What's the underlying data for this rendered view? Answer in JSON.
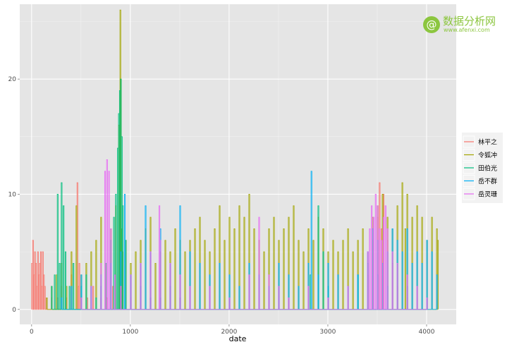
{
  "chart_data": {
    "type": "line",
    "xlabel": "date",
    "ylabel": "",
    "xlim": [
      -120,
      4300
    ],
    "ylim": [
      -1.3,
      26.5
    ],
    "x_ticks": [
      0,
      1000,
      2000,
      3000,
      4000
    ],
    "x_tick_labels": [
      "0",
      "1000",
      "2000",
      "3000",
      "4000"
    ],
    "y_ticks": [
      0,
      10,
      20
    ],
    "y_tick_labels": [
      "0",
      "10",
      "20"
    ],
    "grid": true,
    "legend_position": "right",
    "legend_title": "",
    "colors": [
      "#F8766D",
      "#A3A500",
      "#00BF7D",
      "#00B0F6",
      "#E76BF3"
    ],
    "series": [
      {
        "name": "林平之",
        "x": [
          0,
          10,
          20,
          30,
          40,
          50,
          60,
          70,
          80,
          90,
          100,
          110,
          120,
          130,
          150,
          200,
          260,
          300,
          350,
          400,
          460,
          470,
          480,
          500,
          560,
          620,
          700,
          760,
          820,
          900,
          1000,
          1100,
          1200,
          1300,
          1400,
          1500,
          1700,
          2000,
          2300,
          2600,
          3000,
          3400,
          3450,
          3500,
          3520,
          3540,
          3560,
          3600,
          3650,
          3700,
          3800,
          4000
        ],
        "y": [
          4,
          6,
          3,
          5,
          4,
          2,
          5,
          3,
          4,
          5,
          2,
          5,
          3,
          2,
          1,
          1,
          1,
          2,
          1,
          3,
          11,
          2,
          4,
          1,
          1,
          2,
          1,
          1,
          2,
          1,
          1,
          0,
          1,
          1,
          0,
          1,
          0,
          1,
          0,
          1,
          0,
          3,
          6,
          8,
          11,
          7,
          10,
          6,
          4,
          2,
          1,
          0
        ]
      },
      {
        "name": "令狐冲",
        "x": [
          150,
          200,
          250,
          300,
          350,
          400,
          450,
          500,
          550,
          600,
          650,
          700,
          750,
          800,
          850,
          880,
          895,
          900,
          905,
          915,
          950,
          1000,
          1050,
          1100,
          1150,
          1200,
          1250,
          1300,
          1350,
          1400,
          1450,
          1500,
          1550,
          1600,
          1650,
          1700,
          1750,
          1800,
          1850,
          1900,
          1950,
          2000,
          2050,
          2100,
          2150,
          2200,
          2250,
          2300,
          2350,
          2400,
          2450,
          2500,
          2550,
          2600,
          2650,
          2700,
          2750,
          2800,
          2850,
          2900,
          2950,
          3000,
          3050,
          3100,
          3150,
          3200,
          3250,
          3300,
          3350,
          3400,
          3450,
          3500,
          3550,
          3600,
          3650,
          3700,
          3750,
          3780,
          3800,
          3850,
          3900,
          3950,
          4000,
          4050,
          4100,
          4110
        ],
        "y": [
          1,
          2,
          3,
          4,
          2,
          5,
          9,
          3,
          4,
          5,
          6,
          8,
          4,
          7,
          9,
          16,
          26,
          20,
          7,
          5,
          6,
          4,
          5,
          6,
          7,
          8,
          4,
          5,
          6,
          5,
          7,
          6,
          5,
          6,
          7,
          8,
          6,
          5,
          7,
          9,
          6,
          8,
          7,
          9,
          8,
          10,
          7,
          6,
          5,
          7,
          8,
          6,
          7,
          8,
          9,
          6,
          5,
          7,
          6,
          8,
          7,
          5,
          6,
          5,
          6,
          7,
          5,
          6,
          7,
          5,
          8,
          9,
          10,
          8,
          7,
          9,
          11,
          7,
          10,
          8,
          9,
          8,
          6,
          8,
          7,
          6
        ]
      },
      {
        "name": "田伯光",
        "x": [
          200,
          230,
          260,
          280,
          300,
          320,
          340,
          380,
          420,
          500,
          550,
          600,
          650,
          700,
          750,
          800,
          830,
          850,
          870,
          880,
          890,
          900,
          910,
          920,
          950,
          1000,
          1100,
          1200,
          1300,
          1400,
          1500,
          2000,
          2500,
          2820,
          2900,
          2950,
          3000,
          3300,
          3400,
          3500,
          3600,
          3700,
          3800,
          4000
        ],
        "y": [
          2,
          3,
          10,
          4,
          11,
          9,
          5,
          2,
          4,
          2,
          3,
          2,
          1,
          2,
          4,
          6,
          8,
          10,
          14,
          17,
          19,
          20,
          15,
          9,
          6,
          3,
          2,
          1,
          1,
          2,
          1,
          1,
          2,
          3,
          9,
          5,
          2,
          3,
          4,
          3,
          2,
          4,
          2,
          1
        ]
      },
      {
        "name": "岳不群",
        "x": [
          300,
          400,
          500,
          600,
          700,
          800,
          900,
          940,
          1000,
          1100,
          1150,
          1200,
          1300,
          1400,
          1500,
          1600,
          1700,
          1800,
          1900,
          2000,
          2100,
          2200,
          2300,
          2400,
          2500,
          2600,
          2700,
          2800,
          2830,
          2900,
          3000,
          3100,
          3200,
          3300,
          3400,
          3450,
          3500,
          3550,
          3600,
          3650,
          3700,
          3750,
          3800,
          3850,
          3900,
          3950,
          4000,
          4050,
          4100
        ],
        "y": [
          1,
          2,
          3,
          2,
          3,
          4,
          5,
          10,
          3,
          4,
          9,
          5,
          7,
          4,
          9,
          5,
          4,
          3,
          4,
          3,
          2,
          4,
          3,
          2,
          4,
          3,
          2,
          4,
          12,
          3,
          4,
          3,
          2,
          3,
          5,
          7,
          6,
          4,
          5,
          7,
          6,
          5,
          7,
          4,
          5,
          4,
          6,
          5,
          3
        ]
      },
      {
        "name": "岳灵珊",
        "x": [
          500,
          600,
          700,
          740,
          760,
          780,
          800,
          840,
          900,
          1000,
          1100,
          1200,
          1290,
          1300,
          1400,
          1500,
          1600,
          1800,
          2000,
          2200,
          2300,
          2400,
          2500,
          2600,
          2800,
          3000,
          3200,
          3400,
          3420,
          3440,
          3460,
          3480,
          3500,
          3520,
          3540,
          3560,
          3580,
          3600,
          3650,
          3700,
          3800,
          3900,
          4000
        ],
        "y": [
          1,
          2,
          4,
          12,
          13,
          12,
          7,
          3,
          2,
          3,
          4,
          5,
          9,
          6,
          4,
          3,
          2,
          2,
          1,
          3,
          8,
          3,
          2,
          1,
          2,
          1,
          2,
          5,
          7,
          9,
          8,
          10,
          9,
          7,
          6,
          8,
          9,
          7,
          5,
          4,
          3,
          2,
          1
        ]
      }
    ]
  },
  "watermark": {
    "logo_glyph": "@",
    "main_text": "数据分析网",
    "sub_text": "www.afenxi.com"
  }
}
